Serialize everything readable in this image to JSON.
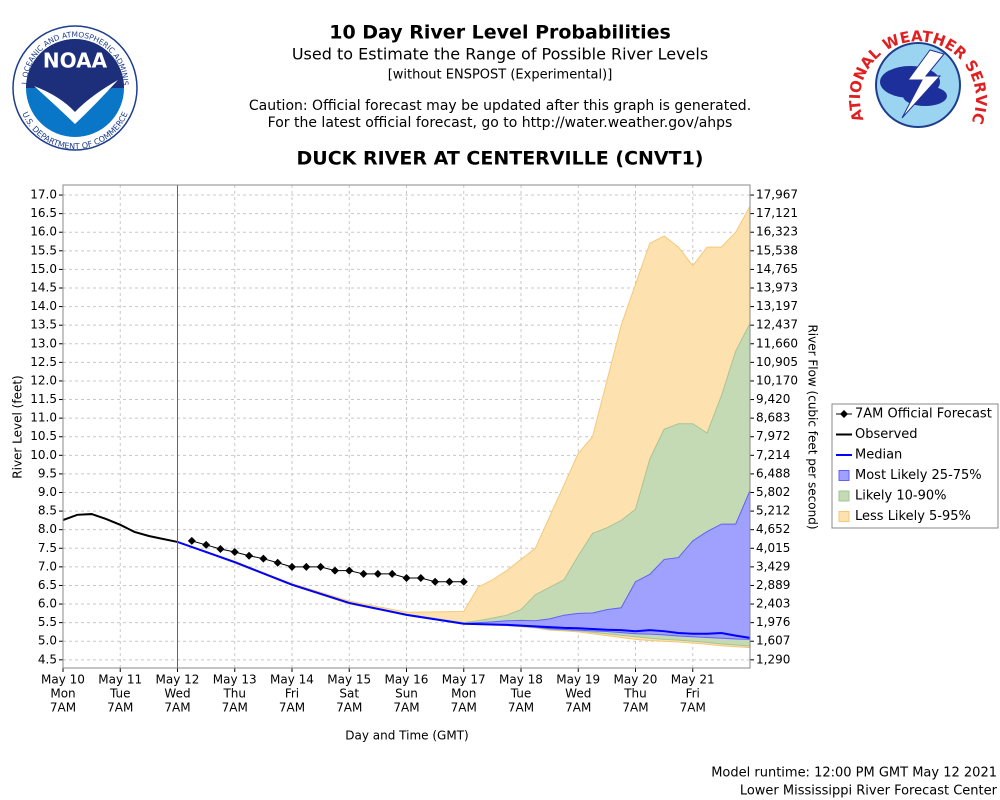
{
  "chart_data": {
    "type": "river-probability",
    "title": "10 Day River Level Probabilities",
    "subtitle": "Used to Estimate the Range of Possible River Levels",
    "note": "[without ENSPOST (Experimental)]",
    "caution": [
      "Caution: Official forecast may be updated after this graph is generated.",
      "For the latest official forecast, go to http://water.weather.gov/ahps"
    ],
    "station": "DUCK RIVER AT CENTERVILLE (CNVT1)",
    "xlabel": "Day and Time (GMT)",
    "ylabel": "River Level (feet)",
    "y2label": "River Flow (cubic feet per second)",
    "footer": [
      "Model runtime: 12:00 PM GMT May 12 2021",
      "Lower Mississippi River Forecast Center"
    ],
    "logos": {
      "noaa": "NOAA",
      "noaa_top": "NATIONAL OCEANIC AND ATMOSPHERIC ADMINISTRATION",
      "noaa_bottom": "U.S. DEPARTMENT OF COMMERCE",
      "nws": "NATIONAL WEATHER SERVICE"
    },
    "xlim": [
      "2021-05-10T07:00",
      "2021-05-22T07:00"
    ],
    "ylim": [
      4.28,
      17.27
    ],
    "grid": true,
    "now_line": {
      "x": "2021-05-12T07:00",
      "color": "#e03030"
    },
    "xticks": [
      {
        "value": "2021-05-10T07:00",
        "label": "May 10"
      },
      {
        "value": "2021-05-11T07:00",
        "label": "May 11"
      },
      {
        "value": "2021-05-12T07:00",
        "label": "May 12"
      },
      {
        "value": "2021-05-13T07:00",
        "label": "May 13"
      },
      {
        "value": "2021-05-14T07:00",
        "label": "May 14"
      },
      {
        "value": "2021-05-15T07:00",
        "label": "May 15"
      },
      {
        "value": "2021-05-16T07:00",
        "label": "May 16"
      },
      {
        "value": "2021-05-17T07:00",
        "label": "May 17"
      },
      {
        "value": "2021-05-18T07:00",
        "label": "May 18"
      },
      {
        "value": "2021-05-19T07:00",
        "label": "May 19"
      },
      {
        "value": "2021-05-20T07:00",
        "label": "May 20"
      },
      {
        "value": "2021-05-21T07:00",
        "label": "May 21"
      }
    ],
    "xtick_weekdays": [
      "Mon",
      "Tue",
      "Wed",
      "Thu",
      "Fri",
      "Sat",
      "Sun",
      "Mon",
      "Tue",
      "Wed",
      "Thu",
      "Fri"
    ],
    "xtick_times": [
      "7AM",
      "7AM",
      "7AM",
      "7AM",
      "7AM",
      "7AM",
      "7AM",
      "7AM",
      "7AM",
      "7AM",
      "7AM",
      "7AM"
    ],
    "yticks": [
      {
        "value": 17,
        "label": "17.0"
      },
      16.5,
      {
        "value": 16,
        "label": "16.0"
      },
      15.5,
      {
        "value": 15,
        "label": "15.0"
      },
      14.5,
      {
        "value": 14,
        "label": "14.0"
      },
      13.5,
      {
        "value": 13,
        "label": "13.0"
      },
      12.5,
      {
        "value": 12,
        "label": "12.0"
      },
      11.5,
      {
        "value": 11,
        "label": "11.0"
      },
      10.5,
      {
        "value": 10,
        "label": "10.0"
      },
      9.5,
      {
        "value": 9,
        "label": "9.0"
      },
      8.5,
      {
        "value": 8,
        "label": "8.0"
      },
      7.5,
      {
        "value": 7,
        "label": "7.0"
      },
      6.5,
      {
        "value": 6,
        "label": "6.0"
      },
      5.5,
      {
        "value": 5,
        "label": "5.0"
      },
      4.5
    ],
    "y2ticks": [
      {
        "value": 17967,
        "label": "17,967"
      },
      {
        "value": 17121,
        "label": "17,121"
      },
      {
        "value": 16323,
        "label": "16,323"
      },
      {
        "value": 15538,
        "label": "15,538"
      },
      {
        "value": 14765,
        "label": "14,765"
      },
      {
        "value": 13973,
        "label": "13,973"
      },
      {
        "value": 13197,
        "label": "13,197"
      },
      {
        "value": 12437,
        "label": "12,437"
      },
      {
        "value": 11660,
        "label": "11,660"
      },
      {
        "value": 10905,
        "label": "10,905"
      },
      {
        "value": 10170,
        "label": "10,170"
      },
      {
        "value": 9420,
        "label": "9,420"
      },
      {
        "value": 8683,
        "label": "8,683"
      },
      {
        "value": 7972,
        "label": "7,972"
      },
      {
        "value": 7214,
        "label": "7,214"
      },
      {
        "value": 6488,
        "label": "6,488"
      },
      {
        "value": 5802,
        "label": "5,802"
      },
      {
        "value": 5212,
        "label": "5,212"
      },
      {
        "value": 4652,
        "label": "4,652"
      },
      {
        "value": 4015,
        "label": "4,015"
      },
      {
        "value": 3429,
        "label": "3,429"
      },
      {
        "value": 2889,
        "label": "2,889"
      },
      {
        "value": 2403,
        "label": "2,403"
      },
      {
        "value": 1976,
        "label": "1,976"
      },
      {
        "value": 1607,
        "label": "1,607"
      },
      {
        "value": 1290,
        "label": "1,290"
      }
    ],
    "series": [
      {
        "name": "7AM Official Forecast",
        "color": "#000000",
        "marker": "diamond",
        "x": [
          "2021-05-12T13:00",
          "2021-05-12T19:00",
          "2021-05-13T01:00",
          "2021-05-13T07:00",
          "2021-05-13T13:00",
          "2021-05-13T19:00",
          "2021-05-14T01:00",
          "2021-05-14T07:00",
          "2021-05-14T13:00",
          "2021-05-14T19:00",
          "2021-05-15T01:00",
          "2021-05-15T07:00",
          "2021-05-15T13:00",
          "2021-05-15T19:00",
          "2021-05-16T01:00",
          "2021-05-16T07:00",
          "2021-05-16T13:00",
          "2021-05-16T19:00",
          "2021-05-17T01:00",
          "2021-05-17T07:00"
        ],
        "values": [
          7.7,
          7.59,
          7.48,
          7.4,
          7.3,
          7.22,
          7.11,
          7.0,
          7.0,
          7.0,
          6.9,
          6.9,
          6.81,
          6.81,
          6.81,
          6.7,
          6.7,
          6.6,
          6.6,
          6.6
        ]
      },
      {
        "name": "Observed",
        "color": "#000000",
        "x": [
          "2021-05-10T07:00",
          "2021-05-10T13:00",
          "2021-05-10T19:00",
          "2021-05-11T01:00",
          "2021-05-11T07:00",
          "2021-05-11T13:00",
          "2021-05-11T19:00",
          "2021-05-12T01:00",
          "2021-05-12T07:00"
        ],
        "values": [
          8.26,
          8.4,
          8.42,
          8.29,
          8.13,
          7.94,
          7.83,
          7.75,
          7.67
        ]
      },
      {
        "name": "Median",
        "color": "#0000ff",
        "x": [
          "2021-05-12T07:00",
          "2021-05-13T07:00",
          "2021-05-14T07:00",
          "2021-05-15T07:00",
          "2021-05-16T07:00",
          "2021-05-17T07:00",
          "2021-05-17T13:00",
          "2021-05-17T19:00",
          "2021-05-18T01:00",
          "2021-05-18T07:00",
          "2021-05-18T13:00",
          "2021-05-18T19:00",
          "2021-05-19T01:00",
          "2021-05-19T07:00",
          "2021-05-19T13:00",
          "2021-05-19T19:00",
          "2021-05-20T01:00",
          "2021-05-20T07:00",
          "2021-05-20T13:00",
          "2021-05-20T19:00",
          "2021-05-21T01:00",
          "2021-05-21T07:00",
          "2021-05-21T13:00",
          "2021-05-21T19:00",
          "2021-05-22T01:00",
          "2021-05-22T07:00"
        ],
        "values": [
          7.67,
          7.13,
          6.52,
          6.03,
          5.71,
          5.47,
          5.46,
          5.45,
          5.44,
          5.42,
          5.4,
          5.38,
          5.36,
          5.35,
          5.33,
          5.31,
          5.3,
          5.27,
          5.3,
          5.27,
          5.22,
          5.2,
          5.2,
          5.22,
          5.15,
          5.09
        ]
      }
    ],
    "band_x": [
      "2021-05-12T07:00",
      "2021-05-13T07:00",
      "2021-05-14T07:00",
      "2021-05-15T07:00",
      "2021-05-16T07:00",
      "2021-05-17T07:00",
      "2021-05-17T13:00",
      "2021-05-17T19:00",
      "2021-05-18T01:00",
      "2021-05-18T07:00",
      "2021-05-18T13:00",
      "2021-05-18T19:00",
      "2021-05-19T01:00",
      "2021-05-19T07:00",
      "2021-05-19T13:00",
      "2021-05-19T19:00",
      "2021-05-20T01:00",
      "2021-05-20T07:00",
      "2021-05-20T13:00",
      "2021-05-20T19:00",
      "2021-05-21T01:00",
      "2021-05-21T07:00",
      "2021-05-21T13:00",
      "2021-05-21T19:00",
      "2021-05-22T01:00",
      "2021-05-22T07:00"
    ],
    "bands": [
      {
        "name": "Most Likely 25-75%",
        "color": "#a0a0ff",
        "edge": "#6060ff",
        "high": [
          7.67,
          7.13,
          6.52,
          6.03,
          5.72,
          5.48,
          5.5,
          5.52,
          5.55,
          5.56,
          5.55,
          5.6,
          5.7,
          5.75,
          5.76,
          5.85,
          5.9,
          6.6,
          6.8,
          7.2,
          7.25,
          7.7,
          7.95,
          8.15,
          8.15,
          9.05
        ],
        "low": [
          7.67,
          7.12,
          6.51,
          6.02,
          5.71,
          5.47,
          5.46,
          5.45,
          5.44,
          5.41,
          5.38,
          5.34,
          5.32,
          5.3,
          5.28,
          5.26,
          5.23,
          5.2,
          5.19,
          5.17,
          5.14,
          5.12,
          5.1,
          5.08,
          5.06,
          5.05
        ]
      },
      {
        "name": "Likely 10-90%",
        "color": "#c4dab4",
        "edge": "#a6c496",
        "high": [
          7.67,
          7.13,
          6.53,
          6.04,
          5.73,
          5.5,
          5.55,
          5.62,
          5.7,
          5.85,
          6.25,
          6.45,
          6.65,
          7.3,
          7.9,
          8.05,
          8.25,
          8.55,
          9.9,
          10.7,
          10.85,
          10.85,
          10.6,
          11.6,
          12.8,
          13.55
        ],
        "low": [
          7.67,
          7.11,
          6.51,
          6.01,
          5.71,
          5.47,
          5.46,
          5.44,
          5.43,
          5.4,
          5.37,
          5.32,
          5.3,
          5.28,
          5.24,
          5.2,
          5.16,
          5.12,
          5.08,
          5.05,
          5.03,
          5.0,
          4.97,
          4.93,
          4.9,
          4.87
        ]
      },
      {
        "name": "Less Likely 5-95%",
        "color": "#fde2b0",
        "edge": "#f5c878",
        "high": [
          7.67,
          7.13,
          6.55,
          6.08,
          5.78,
          5.8,
          6.45,
          6.65,
          6.9,
          7.2,
          7.5,
          8.35,
          9.2,
          10.05,
          10.5,
          12.0,
          13.5,
          14.6,
          15.7,
          15.9,
          15.6,
          15.1,
          15.6,
          15.6,
          16.0,
          16.7
        ],
        "low": [
          7.67,
          7.1,
          6.5,
          6.0,
          5.7,
          5.47,
          5.45,
          5.43,
          5.42,
          5.39,
          5.36,
          5.3,
          5.28,
          5.25,
          5.2,
          5.15,
          5.1,
          5.05,
          5.02,
          5.0,
          4.98,
          4.95,
          4.92,
          4.88,
          4.85,
          4.83
        ]
      }
    ]
  }
}
